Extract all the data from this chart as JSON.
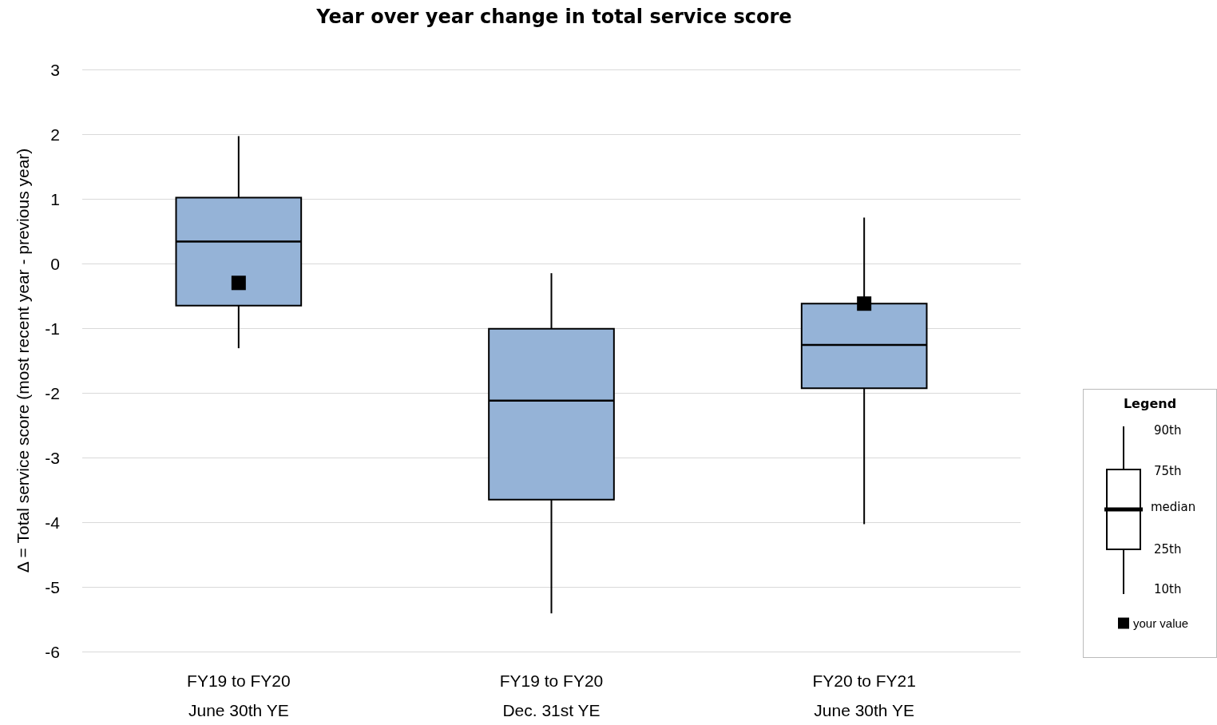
{
  "chart_data": {
    "type": "box",
    "title": "Year over year change in total service score",
    "ylabel": "Δ = Total service score (most recent year - previous year)",
    "categories": [
      "FY19 to FY20\nJune 30th YE",
      "FY19 to FY20\nDec. 31st YE",
      "FY20 to FY21\nJune 30th YE"
    ],
    "series": [
      {
        "color": "#95b3d7",
        "boxes": [
          {
            "low": -1.31,
            "q1": -0.65,
            "median": 0.34,
            "q3": 1.02,
            "high": 1.97
          },
          {
            "low": -5.41,
            "q1": -3.65,
            "median": -2.12,
            "q3": -1.01,
            "high": -0.15
          },
          {
            "low": -4.03,
            "q1": -1.93,
            "median": -1.26,
            "q3": -0.62,
            "high": 0.71
          }
        ]
      },
      {
        "type": "scatter",
        "name": "your value",
        "color": "#000000",
        "marker": "square",
        "x": [
          "FY19 to FY20\nJune 30th YE",
          "FY20 to FY21\nJune 30th YE"
        ],
        "values": [
          -0.3,
          -0.62
        ]
      }
    ],
    "ylim": [
      -6,
      3
    ],
    "yticks": [
      -6,
      -5,
      -4,
      -3,
      -2,
      -1,
      0,
      1,
      2,
      3
    ],
    "grid": "y",
    "legend": "right",
    "legend_title": "Legend",
    "annotations": [
      "90th",
      "75th",
      "median",
      "25th",
      "10th"
    ]
  }
}
